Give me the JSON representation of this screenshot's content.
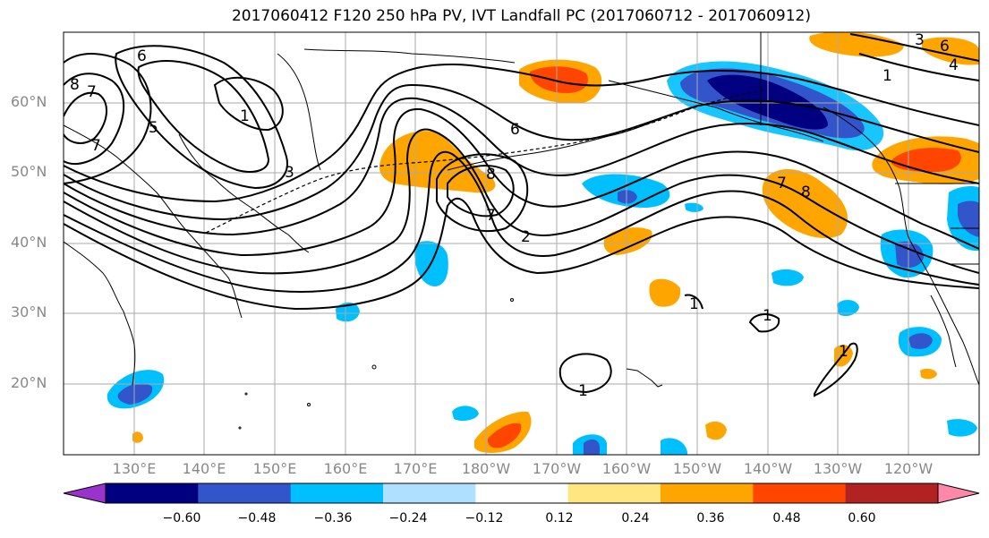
{
  "title": "2017060412 F120 250 hPa PV, IVT Landfall PC (2017060712 - 2017060912)",
  "lat_labels": [
    "60°N",
    "50°N",
    "40°N",
    "30°N",
    "20°N"
  ],
  "lon_labels": [
    "130°E",
    "140°E",
    "150°E",
    "160°E",
    "170°E",
    "180°W",
    "170°W",
    "160°W",
    "150°W",
    "140°W",
    "130°W",
    "120°W"
  ],
  "colorbar": {
    "tick_labels": [
      "−0.60",
      "−0.48",
      "−0.36",
      "−0.24",
      "−0.12",
      "0.12",
      "0.24",
      "0.36",
      "0.48",
      "0.60"
    ],
    "colors": [
      "#9933cc",
      "#000080",
      "#3355cc",
      "#00bfff",
      "#b0e0ff",
      "#ffffff",
      "#ffe680",
      "#ffa500",
      "#ff4500",
      "#b22222",
      "#ff88aa"
    ]
  },
  "contour_labels": [
    "8",
    "7",
    "6",
    "5",
    "7",
    "1",
    "3",
    "6",
    "8",
    "7",
    "2",
    "8",
    "7",
    "3",
    "6",
    "4",
    "1",
    "1",
    "1",
    "1",
    "1"
  ]
}
